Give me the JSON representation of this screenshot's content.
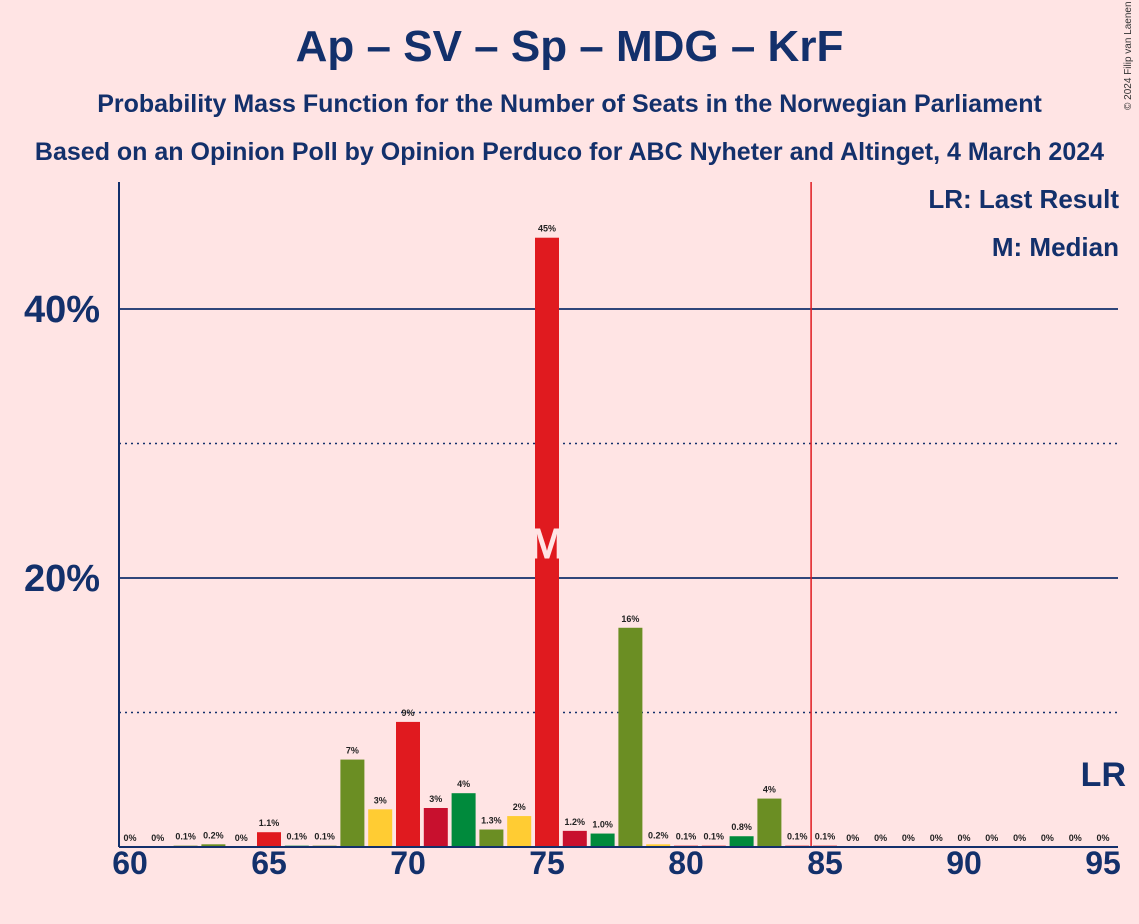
{
  "title": "Ap – SV – Sp – MDG – KrF",
  "subtitle": "Probability Mass Function for the Number of Seats in the Norwegian Parliament",
  "subtitle2": "Based on an Opinion Poll by Opinion Perduco for ABC Nyheter and Altinget, 4 March 2024",
  "copyright": "© 2024 Filip van Laenen",
  "legend": {
    "last_result": "LR: Last Result",
    "median": "M: Median"
  },
  "markers": {
    "median_label": "M",
    "last_result_label": "LR"
  },
  "colors": {
    "red": "#E01A1F",
    "green": "#6B8E23",
    "yellow": "#FFCC33",
    "darkred": "#C8102E",
    "darkgreen": "#008A3C",
    "navy": "#13306B",
    "lr_line": "#E01A1F"
  },
  "chart_data": {
    "type": "bar",
    "x": [
      60,
      61,
      62,
      63,
      64,
      65,
      66,
      67,
      68,
      69,
      70,
      71,
      72,
      73,
      74,
      75,
      76,
      77,
      78,
      79,
      80,
      81,
      82,
      83,
      84,
      85,
      86,
      87,
      88,
      89,
      90,
      91,
      92,
      93,
      94,
      95
    ],
    "values": [
      0,
      0,
      0.1,
      0.2,
      0,
      1.1,
      0.1,
      0.1,
      6.5,
      2.8,
      9.3,
      2.9,
      4.0,
      1.3,
      2.3,
      45.3,
      1.2,
      1.0,
      16.3,
      0.2,
      0.1,
      0.1,
      0.8,
      3.6,
      0.1,
      0.1,
      0,
      0,
      0,
      0,
      0,
      0,
      0,
      0,
      0,
      0
    ],
    "labels": [
      "0%",
      "0%",
      "0.1%",
      "0.2%",
      "0%",
      "1.1%",
      "0.1%",
      "0.1%",
      "7%",
      "3%",
      "9%",
      "3%",
      "4%",
      "1.3%",
      "2%",
      "45%",
      "1.2%",
      "1.0%",
      "16%",
      "0.2%",
      "0.1%",
      "0.1%",
      "0.8%",
      "4%",
      "0.1%",
      "0.1%",
      "0%",
      "0%",
      "0%",
      "0%",
      "0%",
      "0%",
      "0%",
      "0%",
      "0%",
      "0%"
    ],
    "bar_colors": [
      "red",
      "red",
      "green",
      "green",
      "red",
      "red",
      "darkgreen",
      "green",
      "green",
      "yellow",
      "red",
      "darkred",
      "darkgreen",
      "green",
      "yellow",
      "red",
      "darkred",
      "darkgreen",
      "green",
      "yellow",
      "red",
      "red",
      "darkgreen",
      "green",
      "red",
      "red",
      "red",
      "red",
      "red",
      "red",
      "red",
      "red",
      "red",
      "red",
      "red",
      "red"
    ],
    "median": 75,
    "last_result": 85,
    "ylim": [
      0,
      49
    ],
    "yticks_major": [
      20,
      40
    ],
    "ytick_labels": [
      "20%",
      "40%"
    ],
    "yticks_minor": [
      10,
      30
    ],
    "xticks": [
      60,
      65,
      70,
      75,
      80,
      85,
      90,
      95
    ],
    "xtick_labels": [
      "60",
      "65",
      "70",
      "75",
      "80",
      "85",
      "90",
      "95"
    ],
    "grid": true
  }
}
